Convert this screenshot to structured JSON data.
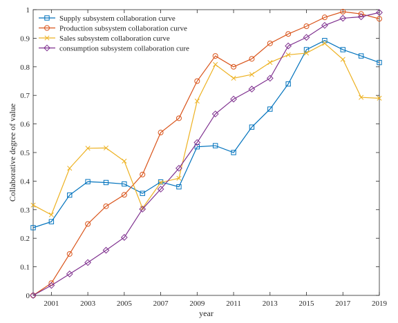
{
  "chart_data": {
    "type": "line",
    "xlabel": "year",
    "ylabel": "Collaborative degree of value",
    "xlim": [
      2000,
      2019
    ],
    "ylim": [
      0,
      1
    ],
    "x": [
      2000,
      2001,
      2002,
      2003,
      2004,
      2005,
      2006,
      2007,
      2008,
      2009,
      2010,
      2011,
      2012,
      2013,
      2014,
      2015,
      2016,
      2017,
      2018,
      2019
    ],
    "x_ticks": [
      2001,
      2003,
      2005,
      2007,
      2009,
      2011,
      2013,
      2015,
      2017,
      2019
    ],
    "x_tick_labels": [
      "2001",
      "2003",
      "2005",
      "2007",
      "2009",
      "2011",
      "2013",
      "2015",
      "2017",
      "2019"
    ],
    "y_ticks": [
      0,
      0.1,
      0.2,
      0.3,
      0.4,
      0.5,
      0.6,
      0.7,
      0.8,
      0.9,
      1
    ],
    "y_tick_labels": [
      "0",
      "0.1",
      "0.2",
      "0.3",
      "0.4",
      "0.5",
      "0.6",
      "0.7",
      "0.8",
      "0.9",
      "1"
    ],
    "grid": false,
    "legend_position": "top-left",
    "series": [
      {
        "name": "Supply subsystem collaboration curve",
        "color": "#0072BD",
        "marker": "square",
        "values": [
          0.237,
          0.258,
          0.351,
          0.398,
          0.395,
          0.39,
          0.357,
          0.397,
          0.38,
          0.52,
          0.524,
          0.5,
          0.589,
          0.652,
          0.74,
          0.86,
          0.892,
          0.86,
          0.838,
          0.815
        ]
      },
      {
        "name": "Production subsystem collaboration curve",
        "color": "#D95319",
        "marker": "circle",
        "values": [
          0.0,
          0.043,
          0.145,
          0.25,
          0.312,
          0.352,
          0.423,
          0.57,
          0.62,
          0.75,
          0.838,
          0.8,
          0.828,
          0.882,
          0.915,
          0.942,
          0.973,
          0.993,
          0.985,
          0.968
        ]
      },
      {
        "name": "Sales subsystem collaboration curve",
        "color": "#EDB120",
        "marker": "x",
        "values": [
          0.316,
          0.282,
          0.445,
          0.515,
          0.516,
          0.47,
          0.305,
          0.395,
          0.41,
          0.68,
          0.808,
          0.76,
          0.773,
          0.815,
          0.842,
          0.848,
          0.882,
          0.826,
          0.693,
          0.69
        ]
      },
      {
        "name": "consumption subsystem collaboration cure",
        "color": "#7E2F8E",
        "marker": "diamond",
        "values": [
          0.0,
          0.035,
          0.075,
          0.115,
          0.158,
          0.203,
          0.302,
          0.372,
          0.445,
          0.535,
          0.635,
          0.687,
          0.722,
          0.76,
          0.873,
          0.903,
          0.945,
          0.97,
          0.975,
          0.99
        ]
      }
    ]
  }
}
